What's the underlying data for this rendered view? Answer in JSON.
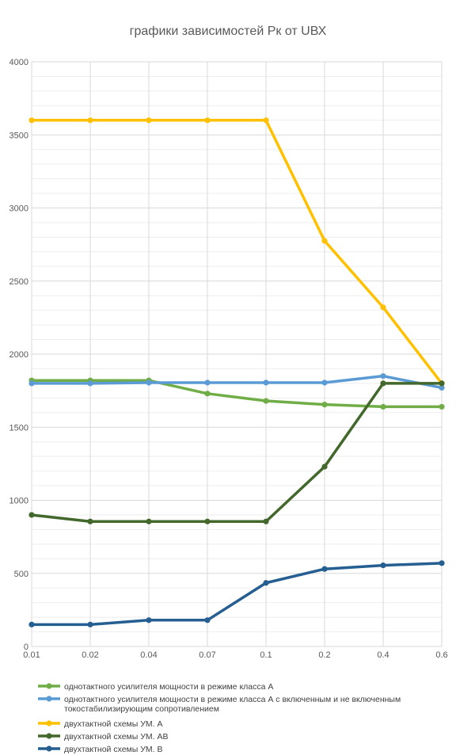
{
  "chart_data": {
    "type": "line",
    "title": "графики зависимостей Рк от UВХ",
    "xlabel": "",
    "ylabel": "",
    "categories": [
      "0.01",
      "0.02",
      "0.04",
      "0.07",
      "0.1",
      "0.2",
      "0.4",
      "0.6"
    ],
    "ylim": [
      0,
      4000
    ],
    "yticks": [
      0,
      500,
      1000,
      1500,
      2000,
      2500,
      3000,
      3500,
      4000
    ],
    "grid": true,
    "legend_position": "bottom",
    "series": [
      {
        "name": "однотактного усилителя мощности в режиме класса А",
        "color": "#70ad47",
        "values": [
          1820,
          1820,
          1820,
          1730,
          1680,
          1655,
          1640,
          1640
        ]
      },
      {
        "name": "однотактного усилителя мощности в режиме класса А с включенным и не включенным токостабилизирующим сопротивлением",
        "name_lines": [
          "однотактного усилителя мощности в режиме класса А с включенным и не включенным",
          "токостабилизирующим сопротивлением"
        ],
        "color": "#5b9bd5",
        "values": [
          1800,
          1800,
          1805,
          1805,
          1805,
          1805,
          1850,
          1770
        ]
      },
      {
        "name": "двухтактной схемы УМ. А",
        "color": "#ffc000",
        "values": [
          3600,
          3600,
          3600,
          3600,
          3600,
          2775,
          2320,
          1800
        ]
      },
      {
        "name": "двухтактной схемы УМ. АВ",
        "color": "#43682b",
        "values": [
          900,
          855,
          855,
          855,
          855,
          1230,
          1800,
          1800
        ]
      },
      {
        "name": "двухтактной схемы УМ. В",
        "color": "#255e91",
        "values": [
          150,
          150,
          180,
          180,
          435,
          530,
          555,
          570
        ]
      }
    ]
  }
}
